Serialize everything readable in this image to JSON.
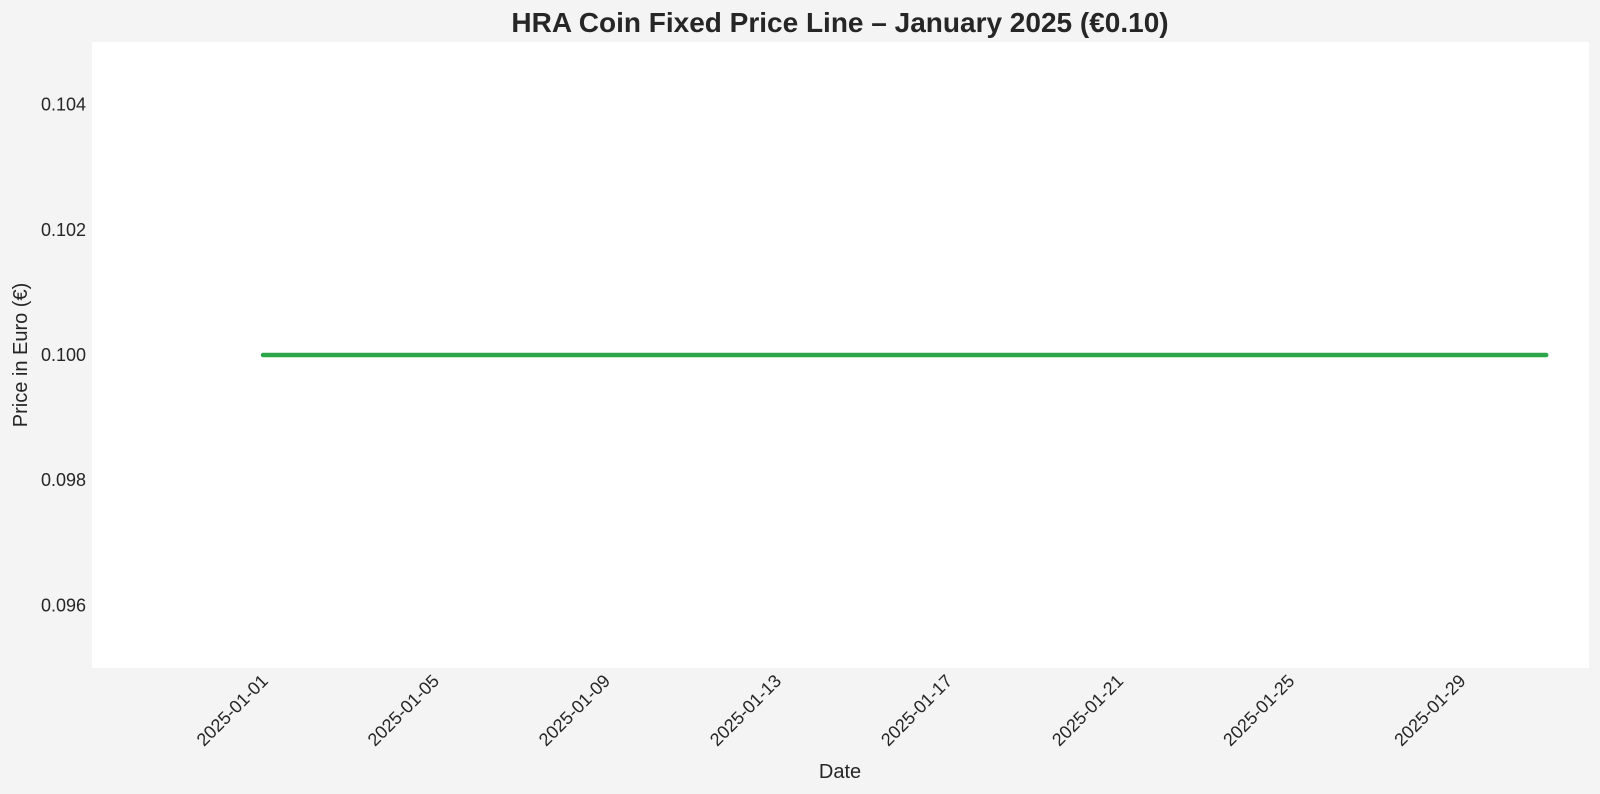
{
  "chart_data": {
    "type": "line",
    "title": "HRA Coin Fixed Price Line – January 2025 (€0.10)",
    "xlabel": "Date",
    "ylabel": "Price in Euro (€)",
    "ylim": [
      0.095,
      0.105
    ],
    "xlim": [
      "2024-12-28",
      "2025-02-01"
    ],
    "y_ticks": [
      "0.096",
      "0.098",
      "0.100",
      "0.102",
      "0.104"
    ],
    "x_ticks": [
      "2025-01-01",
      "2025-01-05",
      "2025-01-09",
      "2025-01-13",
      "2025-01-17",
      "2025-01-21",
      "2025-01-25",
      "2025-01-29"
    ],
    "grid": false,
    "series": [
      {
        "color": "#2ca64a",
        "x": [
          "2025-01-01",
          "2025-01-02",
          "2025-01-03",
          "2025-01-04",
          "2025-01-05",
          "2025-01-06",
          "2025-01-07",
          "2025-01-08",
          "2025-01-09",
          "2025-01-10",
          "2025-01-11",
          "2025-01-12",
          "2025-01-13",
          "2025-01-14",
          "2025-01-15",
          "2025-01-16",
          "2025-01-17",
          "2025-01-18",
          "2025-01-19",
          "2025-01-20",
          "2025-01-21",
          "2025-01-22",
          "2025-01-23",
          "2025-01-24",
          "2025-01-25",
          "2025-01-26",
          "2025-01-27",
          "2025-01-28",
          "2025-01-29",
          "2025-01-30",
          "2025-01-31"
        ],
        "y": [
          0.1,
          0.1,
          0.1,
          0.1,
          0.1,
          0.1,
          0.1,
          0.1,
          0.1,
          0.1,
          0.1,
          0.1,
          0.1,
          0.1,
          0.1,
          0.1,
          0.1,
          0.1,
          0.1,
          0.1,
          0.1,
          0.1,
          0.1,
          0.1,
          0.1,
          0.1,
          0.1,
          0.1,
          0.1,
          0.1,
          0.1
        ]
      }
    ]
  },
  "colors": {
    "figure_background": "#f4f4f4",
    "plot_background": "#ffffff",
    "text": "#262626",
    "line": "#2ca64a"
  }
}
